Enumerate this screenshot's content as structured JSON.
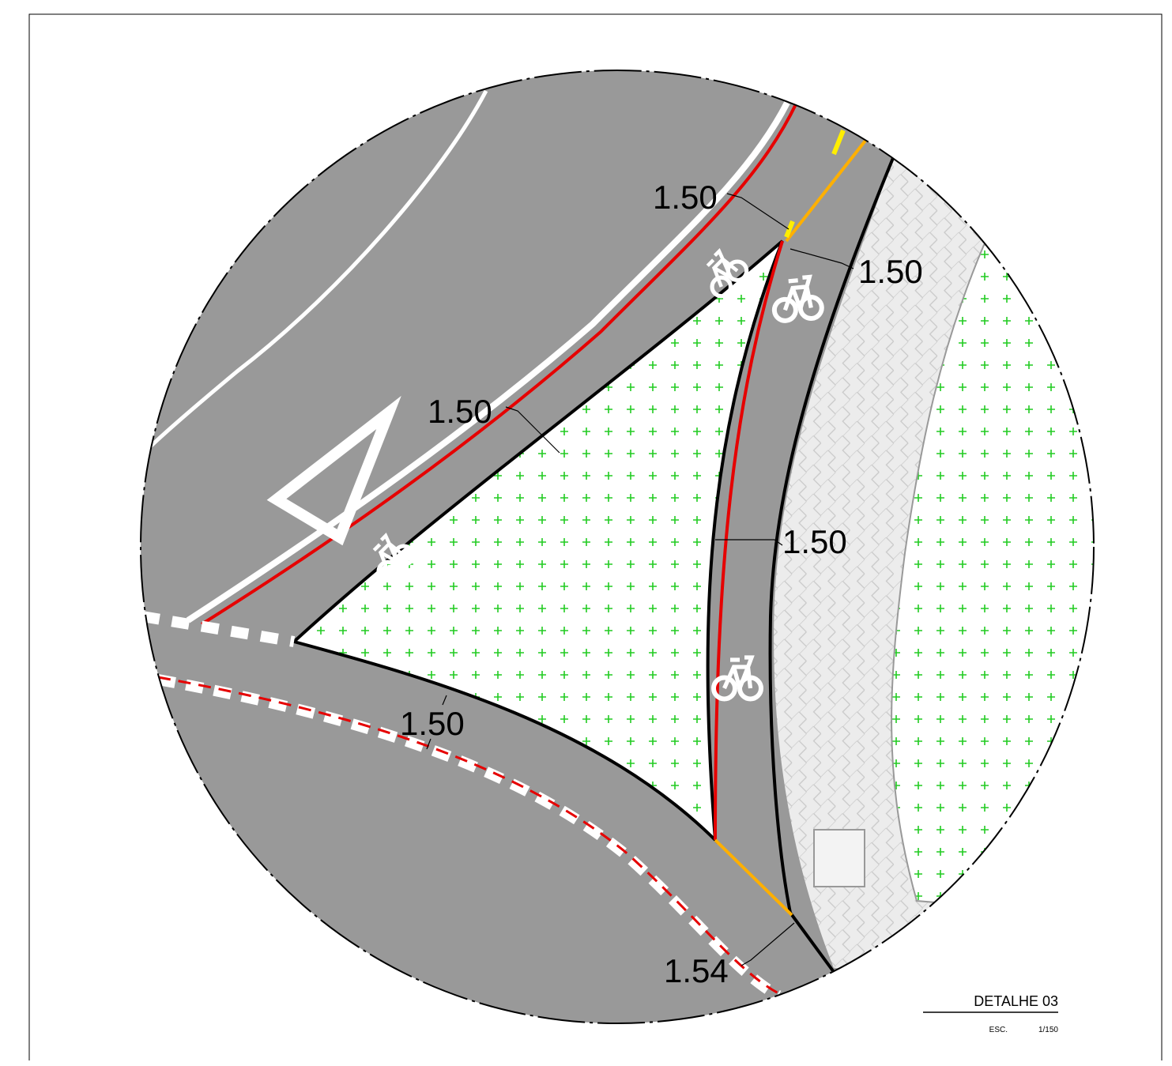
{
  "drawing": {
    "title": "DETALHE 03",
    "scale_label": "ESC.",
    "scale_value": "1/150"
  },
  "dimensions": [
    {
      "id": "top-left",
      "label": "1.50"
    },
    {
      "id": "top-right",
      "label": "1.50"
    },
    {
      "id": "left-mid",
      "label": "1.50"
    },
    {
      "id": "right-mid",
      "label": "1.50"
    },
    {
      "id": "bottom-left",
      "label": "1.50"
    },
    {
      "id": "bottom",
      "label": "1.54"
    }
  ],
  "colors": {
    "asphalt": "#999999",
    "paving": "#e9e9e9",
    "planting": "#22cc22",
    "edge_red": "#e60000",
    "edge_black": "#000000",
    "crossing_orange": "#ffb000",
    "marking_yellow": "#ffee00",
    "marking_white": "#ffffff"
  },
  "icons": [
    "bicycle-icon",
    "yield-triangle-icon",
    "planting-hatch",
    "paving-hatch"
  ]
}
